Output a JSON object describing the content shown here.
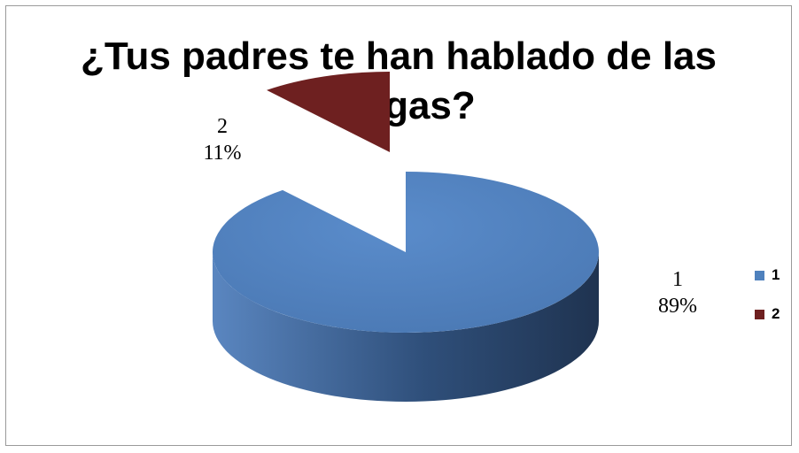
{
  "chart_data": {
    "type": "pie",
    "title": "¿Tus padres te han hablado de las drogas?",
    "legend_position": "right",
    "slices": [
      {
        "name": "1",
        "value": 89,
        "label_name": "1",
        "label_percent": "89%",
        "color": "#4F81BD"
      },
      {
        "name": "2",
        "value": 11,
        "label_name": "2",
        "label_percent": "11%",
        "color": "#6E2020"
      }
    ]
  }
}
